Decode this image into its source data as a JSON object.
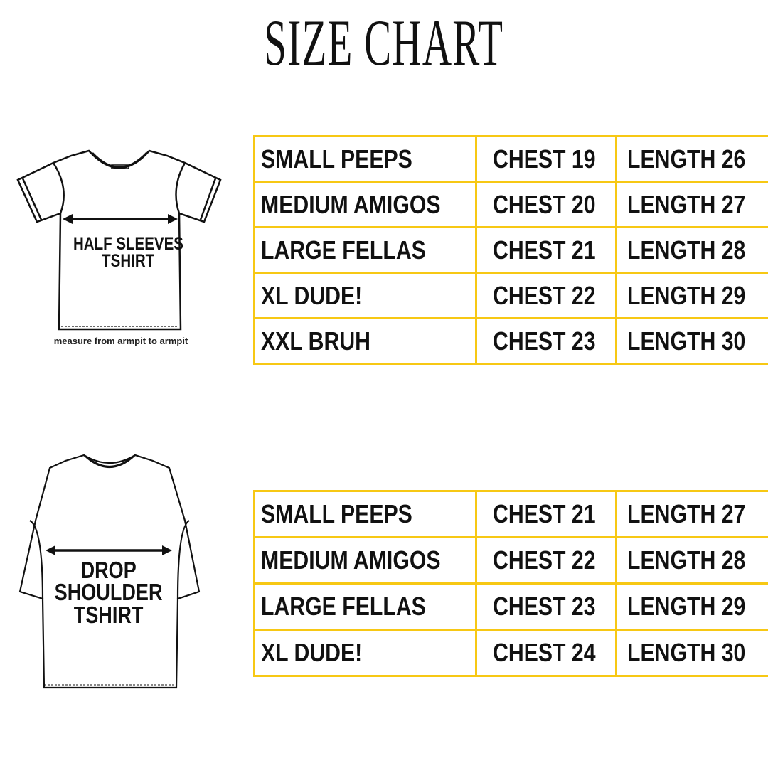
{
  "title": "SIZE CHART",
  "accent_color": "#f7c814",
  "half_sleeves": {
    "label_line1": "HALF SLEEVES",
    "label_line2": "TSHIRT",
    "note": "measure from armpit to armpit",
    "rows": [
      {
        "size": "SMALL PEEPS",
        "chest": "CHEST 19",
        "length": "LENGTH 26"
      },
      {
        "size": "MEDIUM AMIGOS",
        "chest": "CHEST 20",
        "length": "LENGTH 27"
      },
      {
        "size": "LARGE FELLAS",
        "chest": "CHEST 21",
        "length": "LENGTH 28"
      },
      {
        "size": "XL DUDE!",
        "chest": "CHEST 22",
        "length": "LENGTH 29"
      },
      {
        "size": "XXL BRUH",
        "chest": "CHEST 23",
        "length": "LENGTH 30"
      }
    ]
  },
  "drop_shoulder": {
    "label_line1": "DROP",
    "label_line2": "SHOULDER",
    "label_line3": "TSHIRT",
    "rows": [
      {
        "size": "SMALL PEEPS",
        "chest": "CHEST 21",
        "length": "LENGTH 27"
      },
      {
        "size": "MEDIUM AMIGOS",
        "chest": "CHEST 22",
        "length": "LENGTH 28"
      },
      {
        "size": "LARGE FELLAS",
        "chest": "CHEST 23",
        "length": "LENGTH 29"
      },
      {
        "size": "XL DUDE!",
        "chest": "CHEST 24",
        "length": "LENGTH 30"
      }
    ]
  }
}
